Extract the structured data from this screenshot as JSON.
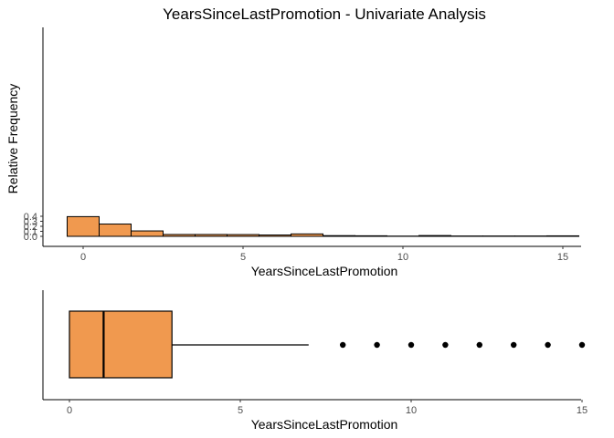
{
  "chart_data": [
    {
      "type": "bar",
      "title": "YearsSinceLastPromotion - Univariate Analysis",
      "xlabel": "YearsSinceLastPromotion",
      "ylabel": "Relative Frequency",
      "x": [
        0,
        1,
        2,
        3,
        4,
        5,
        6,
        7,
        8,
        9,
        10,
        11,
        12,
        13,
        14,
        15
      ],
      "values": [
        0.393,
        0.245,
        0.108,
        0.037,
        0.037,
        0.035,
        0.027,
        0.048,
        0.014,
        0.011,
        0.005,
        0.016,
        0.007,
        0.007,
        0.007,
        0.01
      ],
      "xlim": [
        -0.5,
        15.5
      ],
      "ylim": [
        0,
        0.4
      ],
      "xticks": [
        "0",
        "5",
        "10",
        "15"
      ],
      "yticks": [
        "0.0",
        "0.1",
        "0.2",
        "0.3",
        "0.4"
      ],
      "bar_color": "#F0994F",
      "grid": false
    },
    {
      "type": "boxplot",
      "xlabel": "YearsSinceLastPromotion",
      "min": 0,
      "q1": 0,
      "median": 1,
      "q3": 3,
      "whisker_high": 7,
      "outliers": [
        8,
        9,
        10,
        11,
        12,
        13,
        14,
        15
      ],
      "xticks": [
        "0",
        "5",
        "10",
        "15"
      ],
      "box_color": "#F0994F",
      "grid": false
    }
  ]
}
